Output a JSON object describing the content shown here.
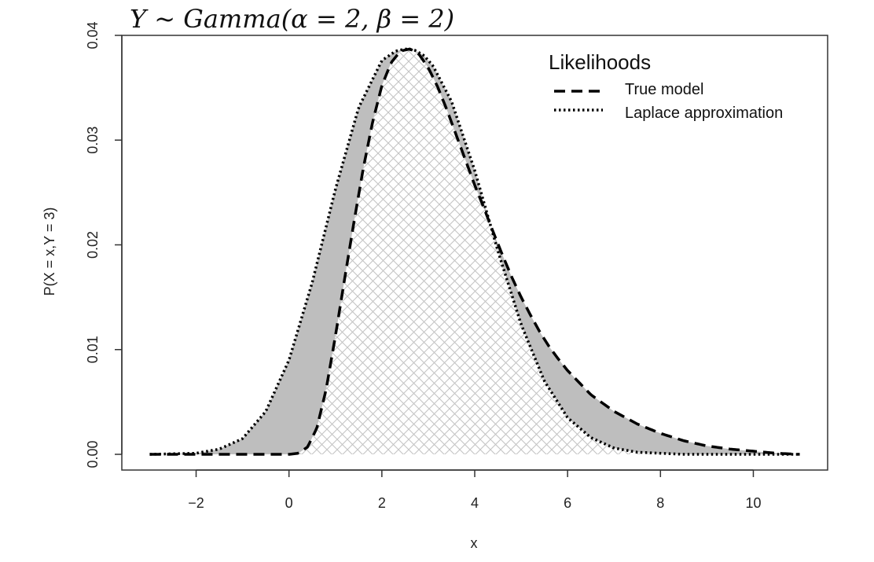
{
  "chart_data": {
    "type": "line",
    "title": "Y ~ Gamma(α = 2, β = 2)",
    "xlabel": "x",
    "ylabel": "P(X = x,Y = 3)",
    "xlim": [
      -3.6,
      11.6
    ],
    "ylim": [
      -0.0015,
      0.04
    ],
    "x_ticks": [
      -2,
      0,
      2,
      4,
      6,
      8,
      10
    ],
    "x_tick_labels": [
      "−2",
      "0",
      "2",
      "4",
      "6",
      "8",
      "10"
    ],
    "y_ticks": [
      0.0,
      0.01,
      0.02,
      0.03,
      0.04
    ],
    "y_tick_labels": [
      "0.00",
      "0.01",
      "0.02",
      "0.03",
      "0.04"
    ],
    "legend": {
      "title": "Likelihoods",
      "position": "top-right",
      "entries": [
        "True model",
        "Laplace approximation"
      ]
    },
    "series": [
      {
        "name": "True model",
        "style": "dashed",
        "color": "#000000",
        "x": [
          -3,
          -2,
          -1,
          0,
          0.2,
          0.4,
          0.6,
          0.8,
          1.0,
          1.2,
          1.4,
          1.6,
          1.8,
          2.0,
          2.2,
          2.4,
          2.6,
          2.7,
          2.8,
          3.0,
          3.2,
          3.4,
          3.6,
          3.8,
          4.0,
          4.2,
          4.4,
          4.6,
          4.8,
          5.0,
          5.2,
          5.4,
          5.6,
          5.8,
          6.0,
          6.5,
          7.0,
          7.5,
          8.0,
          8.5,
          9.0,
          9.5,
          10.0,
          10.5,
          11.0
        ],
        "y": [
          0.0,
          0.0,
          0.0,
          0.0,
          0.0001,
          0.0007,
          0.0025,
          0.0062,
          0.0113,
          0.0168,
          0.0222,
          0.0273,
          0.0317,
          0.0352,
          0.0374,
          0.0385,
          0.0387,
          0.0385,
          0.0382,
          0.0369,
          0.0351,
          0.0329,
          0.0305,
          0.0281,
          0.0257,
          0.0235,
          0.0212,
          0.019,
          0.0169,
          0.015,
          0.0133,
          0.0117,
          0.0103,
          0.0091,
          0.008,
          0.0057,
          0.0041,
          0.0029,
          0.002,
          0.0013,
          0.0008,
          0.0005,
          0.0003,
          0.0001,
          0.0
        ]
      },
      {
        "name": "Laplace approximation",
        "style": "dotted",
        "color": "#000000",
        "x": [
          -3,
          -2,
          -1.5,
          -1,
          -0.5,
          0,
          0.5,
          1.0,
          1.5,
          2.0,
          2.3,
          2.5,
          2.7,
          2.9,
          3.1,
          3.5,
          4.0,
          4.5,
          5.0,
          5.5,
          6.0,
          6.5,
          7.0,
          7.5,
          8.0,
          8.5,
          9.0,
          9.5,
          10.0,
          10.5,
          11.0
        ],
        "y": [
          0.0,
          0.0001,
          0.0005,
          0.0015,
          0.0041,
          0.009,
          0.0164,
          0.0253,
          0.0331,
          0.0376,
          0.0385,
          0.0387,
          0.0386,
          0.0381,
          0.0371,
          0.0337,
          0.0271,
          0.0194,
          0.0124,
          0.007,
          0.0035,
          0.0016,
          0.0006,
          0.0002,
          0.0001,
          0.0,
          0.0,
          0.0,
          0.0,
          0.0,
          0.0
        ]
      }
    ],
    "shading": {
      "difference_fill": "#bebebe",
      "overlap_pattern": "crosshatch",
      "overlap_color": "#c4c4c4"
    }
  }
}
